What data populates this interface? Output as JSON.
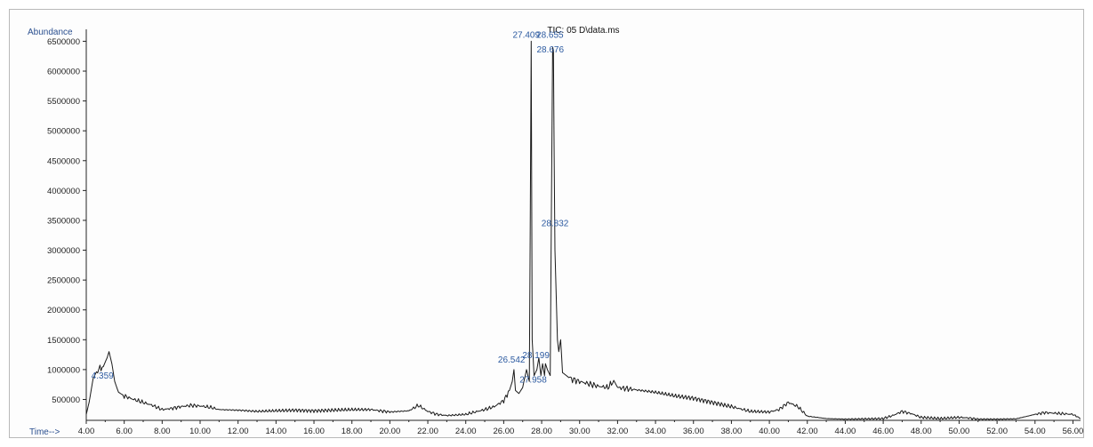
{
  "chart_data": {
    "type": "line",
    "title": "TIC: 05 D\\data.ms",
    "ylabel": "Abundance",
    "xlabel": "Time-->",
    "xlim": [
      4.0,
      56.4
    ],
    "ylim": [
      150000,
      6700000
    ],
    "x_ticks": [
      "4.00",
      "6.00",
      "8.00",
      "10.00",
      "12.00",
      "14.00",
      "16.00",
      "18.00",
      "20.00",
      "22.00",
      "24.00",
      "26.00",
      "28.00",
      "30.00",
      "32.00",
      "34.00",
      "36.00",
      "38.00",
      "40.00",
      "42.00",
      "44.00",
      "46.00",
      "48.00",
      "50.00",
      "52.00",
      "54.00",
      "56.00"
    ],
    "y_ticks": [
      "500000",
      "1000000",
      "1500000",
      "2000000",
      "2500000",
      "3000000",
      "3500000",
      "4000000",
      "4500000",
      "5000000",
      "5500000",
      "6000000",
      "6500000"
    ],
    "grid": false,
    "legend": "none",
    "line_color": "#1a1a1a",
    "series": [
      {
        "x": [
          4.0,
          4.15,
          4.36,
          4.6,
          4.9,
          5.1,
          5.2,
          5.35,
          5.5,
          5.7,
          6.0,
          6.5,
          7.0,
          7.5,
          8.0,
          8.5,
          9.0,
          9.5,
          10.0,
          10.5,
          11.0,
          12.0,
          13.0,
          14.0,
          15.0,
          16.0,
          17.0,
          18.0,
          19.0,
          19.5,
          20.0,
          21.0,
          21.5,
          22.0,
          22.5,
          23.0,
          24.0,
          24.5,
          25.0,
          25.5,
          26.0,
          26.3,
          26.45,
          26.54,
          26.62,
          26.8,
          27.0,
          27.2,
          27.35,
          27.45,
          27.5,
          27.6,
          27.75,
          27.85,
          27.96,
          28.05,
          28.15,
          28.2,
          28.3,
          28.45,
          28.58,
          28.62,
          28.66,
          28.7,
          28.83,
          28.9,
          29.0,
          29.1,
          29.3,
          29.5,
          30.0,
          30.5,
          31.0,
          31.5,
          31.8,
          32.0,
          32.5,
          33.0,
          34.0,
          35.0,
          36.0,
          37.0,
          38.0,
          38.5,
          39.0,
          40.0,
          40.5,
          41.0,
          41.5,
          42.0,
          43.0,
          44.0,
          45.0,
          46.0,
          46.5,
          47.0,
          47.5,
          48.0,
          49.0,
          50.0,
          50.5,
          51.0,
          52.0,
          53.0,
          54.0,
          54.5,
          55.0,
          55.5,
          56.0,
          56.4
        ],
        "y": [
          250000,
          450000,
          850000,
          1000000,
          1050000,
          1200000,
          1300000,
          1100000,
          800000,
          620000,
          560000,
          500000,
          450000,
          400000,
          330000,
          350000,
          380000,
          400000,
          390000,
          370000,
          330000,
          320000,
          300000,
          310000,
          320000,
          310000,
          320000,
          330000,
          330000,
          310000,
          290000,
          310000,
          400000,
          300000,
          250000,
          230000,
          250000,
          290000,
          330000,
          380000,
          480000,
          650000,
          800000,
          1000000,
          650000,
          600000,
          700000,
          1000000,
          800000,
          6500000,
          1500000,
          900000,
          1000000,
          1200000,
          900000,
          1100000,
          900000,
          1100000,
          1000000,
          900000,
          6400000,
          6350000,
          4600000,
          3000000,
          1500000,
          1300000,
          1500000,
          950000,
          900000,
          850000,
          800000,
          760000,
          720000,
          700000,
          820000,
          700000,
          680000,
          660000,
          620000,
          560000,
          520000,
          450000,
          380000,
          340000,
          300000,
          290000,
          330000,
          450000,
          380000,
          220000,
          180000,
          170000,
          175000,
          180000,
          230000,
          300000,
          260000,
          200000,
          180000,
          200000,
          190000,
          170000,
          170000,
          175000,
          250000,
          280000,
          270000,
          260000,
          250000,
          180000
        ]
      }
    ],
    "peak_labels": [
      {
        "text": "4.359",
        "x": 4.36,
        "y": 850000
      },
      {
        "text": "26.542",
        "x": 26.54,
        "y": 1000000
      },
      {
        "text": "27.409",
        "x": 27.41,
        "y": 6500000
      },
      {
        "text": "28.655",
        "x": 28.655,
        "y": 6500000
      },
      {
        "text": "28.676",
        "x": 28.676,
        "y": 6400000
      },
      {
        "text": "28.199",
        "x": 28.2,
        "y": 1100000
      },
      {
        "text": "27.958",
        "x": 27.96,
        "y": 900000
      },
      {
        "text": "28.832",
        "x": 28.83,
        "y": 3400000
      }
    ]
  }
}
